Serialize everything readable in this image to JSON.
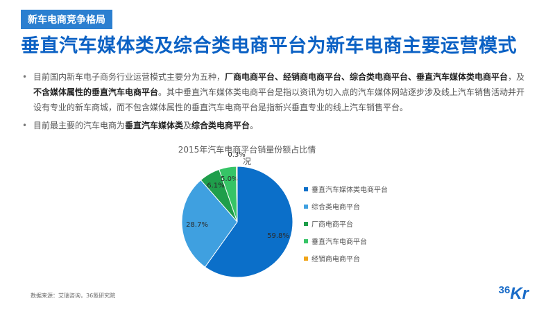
{
  "header": {
    "tag": "新车电商竞争格局",
    "title": "垂直汽车媒体类及综合类电商平台为新车电商主要运营模式"
  },
  "bullets": [
    {
      "t1": "目前国内新车电子商务行业运营模式主要分为五种，",
      "b1": "厂商电商平台、经销商电商平台、综合类电商平台、垂直汽车媒体类电商平台",
      "t2": "，及",
      "b2": "不含媒体属性的垂直汽车电商平台",
      "t3": "。其中垂直汽车媒体类电商平台是指以资讯为切入点的汽车媒体网站逐步涉及线上汽车销售活动并开设有专业的新车商城，而不包含媒体属性的垂直汽车电商平台是指新兴垂直专业的线上汽车销售平台。"
    },
    {
      "t1": "目前最主要的汽车电商为",
      "b1": "垂直汽车媒体类",
      "t2": "及",
      "b2": "综合类电商平台",
      "t3": "。"
    }
  ],
  "chart_data": {
    "type": "pie",
    "title": "2015年汽车电商平台销量份额占比情况",
    "slices": [
      {
        "name": "垂直汽车媒体类电商平台",
        "value": 59.8,
        "label": "59.8%",
        "color": "#0b6fc9"
      },
      {
        "name": "综合类电商平台",
        "value": 28.7,
        "label": "28.7%",
        "color": "#3fa0e0"
      },
      {
        "name": "厂商电商平台",
        "value": 6.1,
        "label": "6.1%",
        "color": "#1f9e4b"
      },
      {
        "name": "垂直汽车电商平台",
        "value": 5.0,
        "label": "5.0%",
        "color": "#36c466"
      },
      {
        "name": "经销商电商平台",
        "value": 0.3,
        "label": "0.3%",
        "color": "#f0a418"
      }
    ],
    "legend_position": "right"
  },
  "footer": {
    "source": "数据来源：艾瑞咨询，36氪研究院",
    "logo_num": "36",
    "logo_k": "Kr"
  }
}
